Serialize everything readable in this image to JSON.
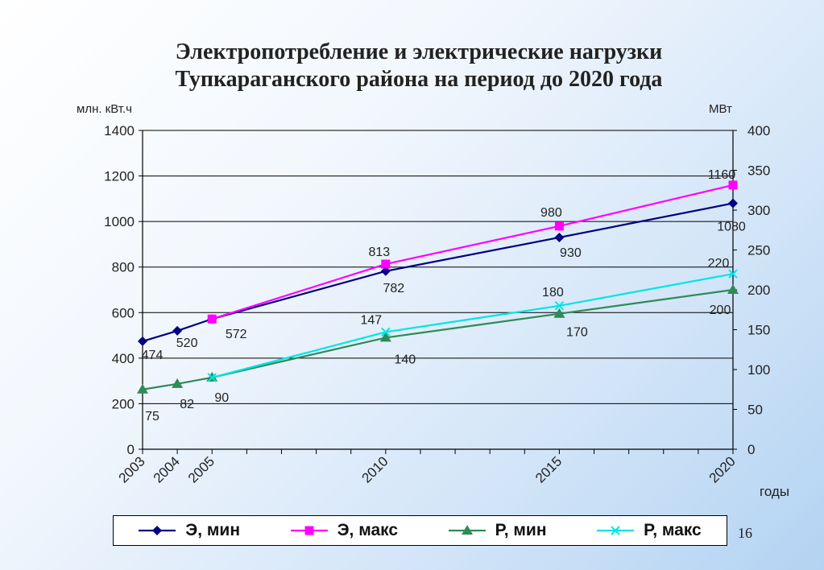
{
  "title": {
    "line1": "Электропотребление и электрические нагрузки",
    "line2": "Тупкараганского района на период до 2020 года"
  },
  "page_number": "16",
  "chart_data": {
    "type": "line",
    "x": [
      2003,
      2004,
      2005,
      2010,
      2015,
      2020
    ],
    "x_tick_labels": [
      "2003",
      "2004",
      "2005",
      "2010",
      "2015",
      "2020"
    ],
    "xlabel": "годы",
    "ylabel_left": "млн. кВт.ч",
    "ylabel_right": "МВт",
    "ylim_left": [
      0,
      1400
    ],
    "ylim_right": [
      0,
      400
    ],
    "yticks_left": [
      0,
      200,
      400,
      600,
      800,
      1000,
      1200,
      1400
    ],
    "yticks_right": [
      0,
      50,
      100,
      150,
      200,
      250,
      300,
      350,
      400
    ],
    "grid": "horizontal",
    "legend_position": "bottom",
    "series": [
      {
        "name": "Э, мин",
        "axis": "left",
        "color": "#000080",
        "marker": "diamond",
        "x": [
          2003,
          2004,
          2005,
          2010,
          2015,
          2020
        ],
        "values": [
          474,
          520,
          572,
          782,
          930,
          1080
        ],
        "labels": [
          "474",
          "520",
          "572",
          "782",
          "930",
          "1080"
        ]
      },
      {
        "name": "Э, макс",
        "axis": "left",
        "color": "#ff00ff",
        "marker": "square",
        "x": [
          2005,
          2010,
          2015,
          2020
        ],
        "values": [
          572,
          813,
          980,
          1160
        ],
        "labels": [
          "",
          "813",
          "980",
          "1160"
        ]
      },
      {
        "name": "Р, мин",
        "axis": "right",
        "color": "#2e8b57",
        "marker": "triangle",
        "x": [
          2003,
          2004,
          2005,
          2010,
          2015,
          2020
        ],
        "values": [
          75,
          82,
          90,
          140,
          170,
          200
        ],
        "labels": [
          "75",
          "82",
          "90",
          "140",
          "170",
          "200"
        ]
      },
      {
        "name": "Р, макс",
        "axis": "right",
        "color": "#00e5e5",
        "marker": "x",
        "x": [
          2005,
          2010,
          2015,
          2020
        ],
        "values": [
          90,
          147,
          180,
          220
        ],
        "labels": [
          "",
          "147",
          "180",
          "220"
        ]
      }
    ]
  }
}
